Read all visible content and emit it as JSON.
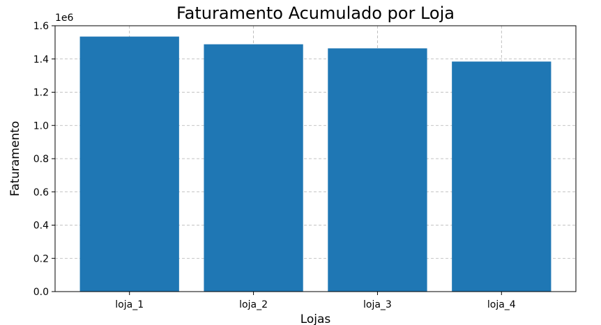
{
  "chart_data": {
    "type": "bar",
    "title": "Faturamento Acumulado por Loja",
    "xlabel": "Lojas",
    "ylabel": "Faturamento",
    "y_offset_label": "1e6",
    "categories": [
      "loja_1",
      "loja_2",
      "loja_3",
      "loja_4"
    ],
    "values": [
      1534849,
      1488459,
      1464025,
      1384497
    ],
    "ylim": [
      0,
      1600000
    ],
    "yticks": [
      0,
      200000,
      400000,
      600000,
      800000,
      1000000,
      1200000,
      1400000,
      1600000
    ],
    "ytick_labels": [
      "0.0",
      "0.2",
      "0.4",
      "0.6",
      "0.8",
      "1.0",
      "1.2",
      "1.4",
      "1.6"
    ],
    "grid": true,
    "bar_color": "#1f77b4"
  }
}
